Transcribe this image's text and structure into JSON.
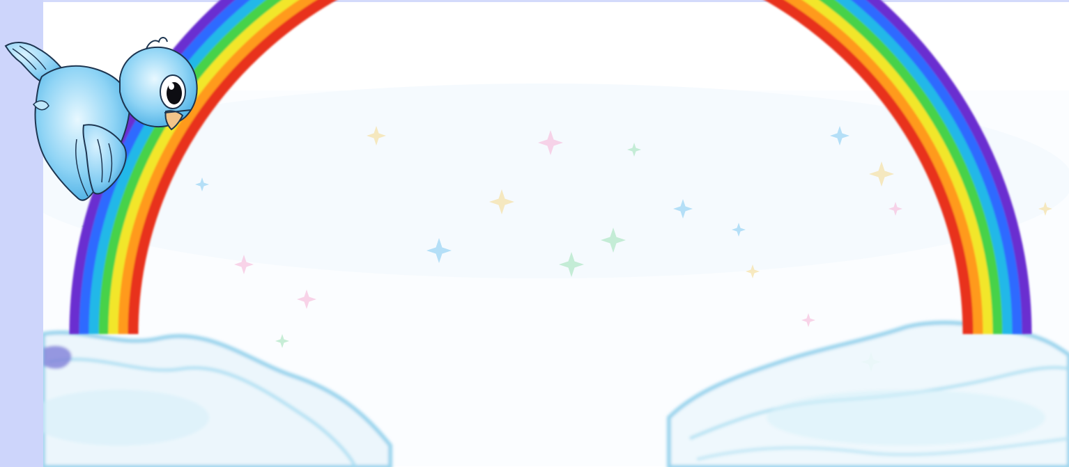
{
  "scene": {
    "background_color": "#cfd6fb",
    "picture_background": "#ffffff",
    "rainbow_colors": [
      "#6a2fd0",
      "#2f6bff",
      "#22b8e8",
      "#46d24a",
      "#f2e62a",
      "#ff9a1a",
      "#e8321a"
    ],
    "cloud_color": "#9fd8ee",
    "sparkle_colors": [
      "#7ec9f0",
      "#f4d98a",
      "#f6b0d6",
      "#9be0b4"
    ],
    "bird": {
      "body_color": "#8fd4f5",
      "outline_color": "#1d3550",
      "beak_color": "#f2c48a",
      "icon": "flying-bluebird"
    }
  }
}
